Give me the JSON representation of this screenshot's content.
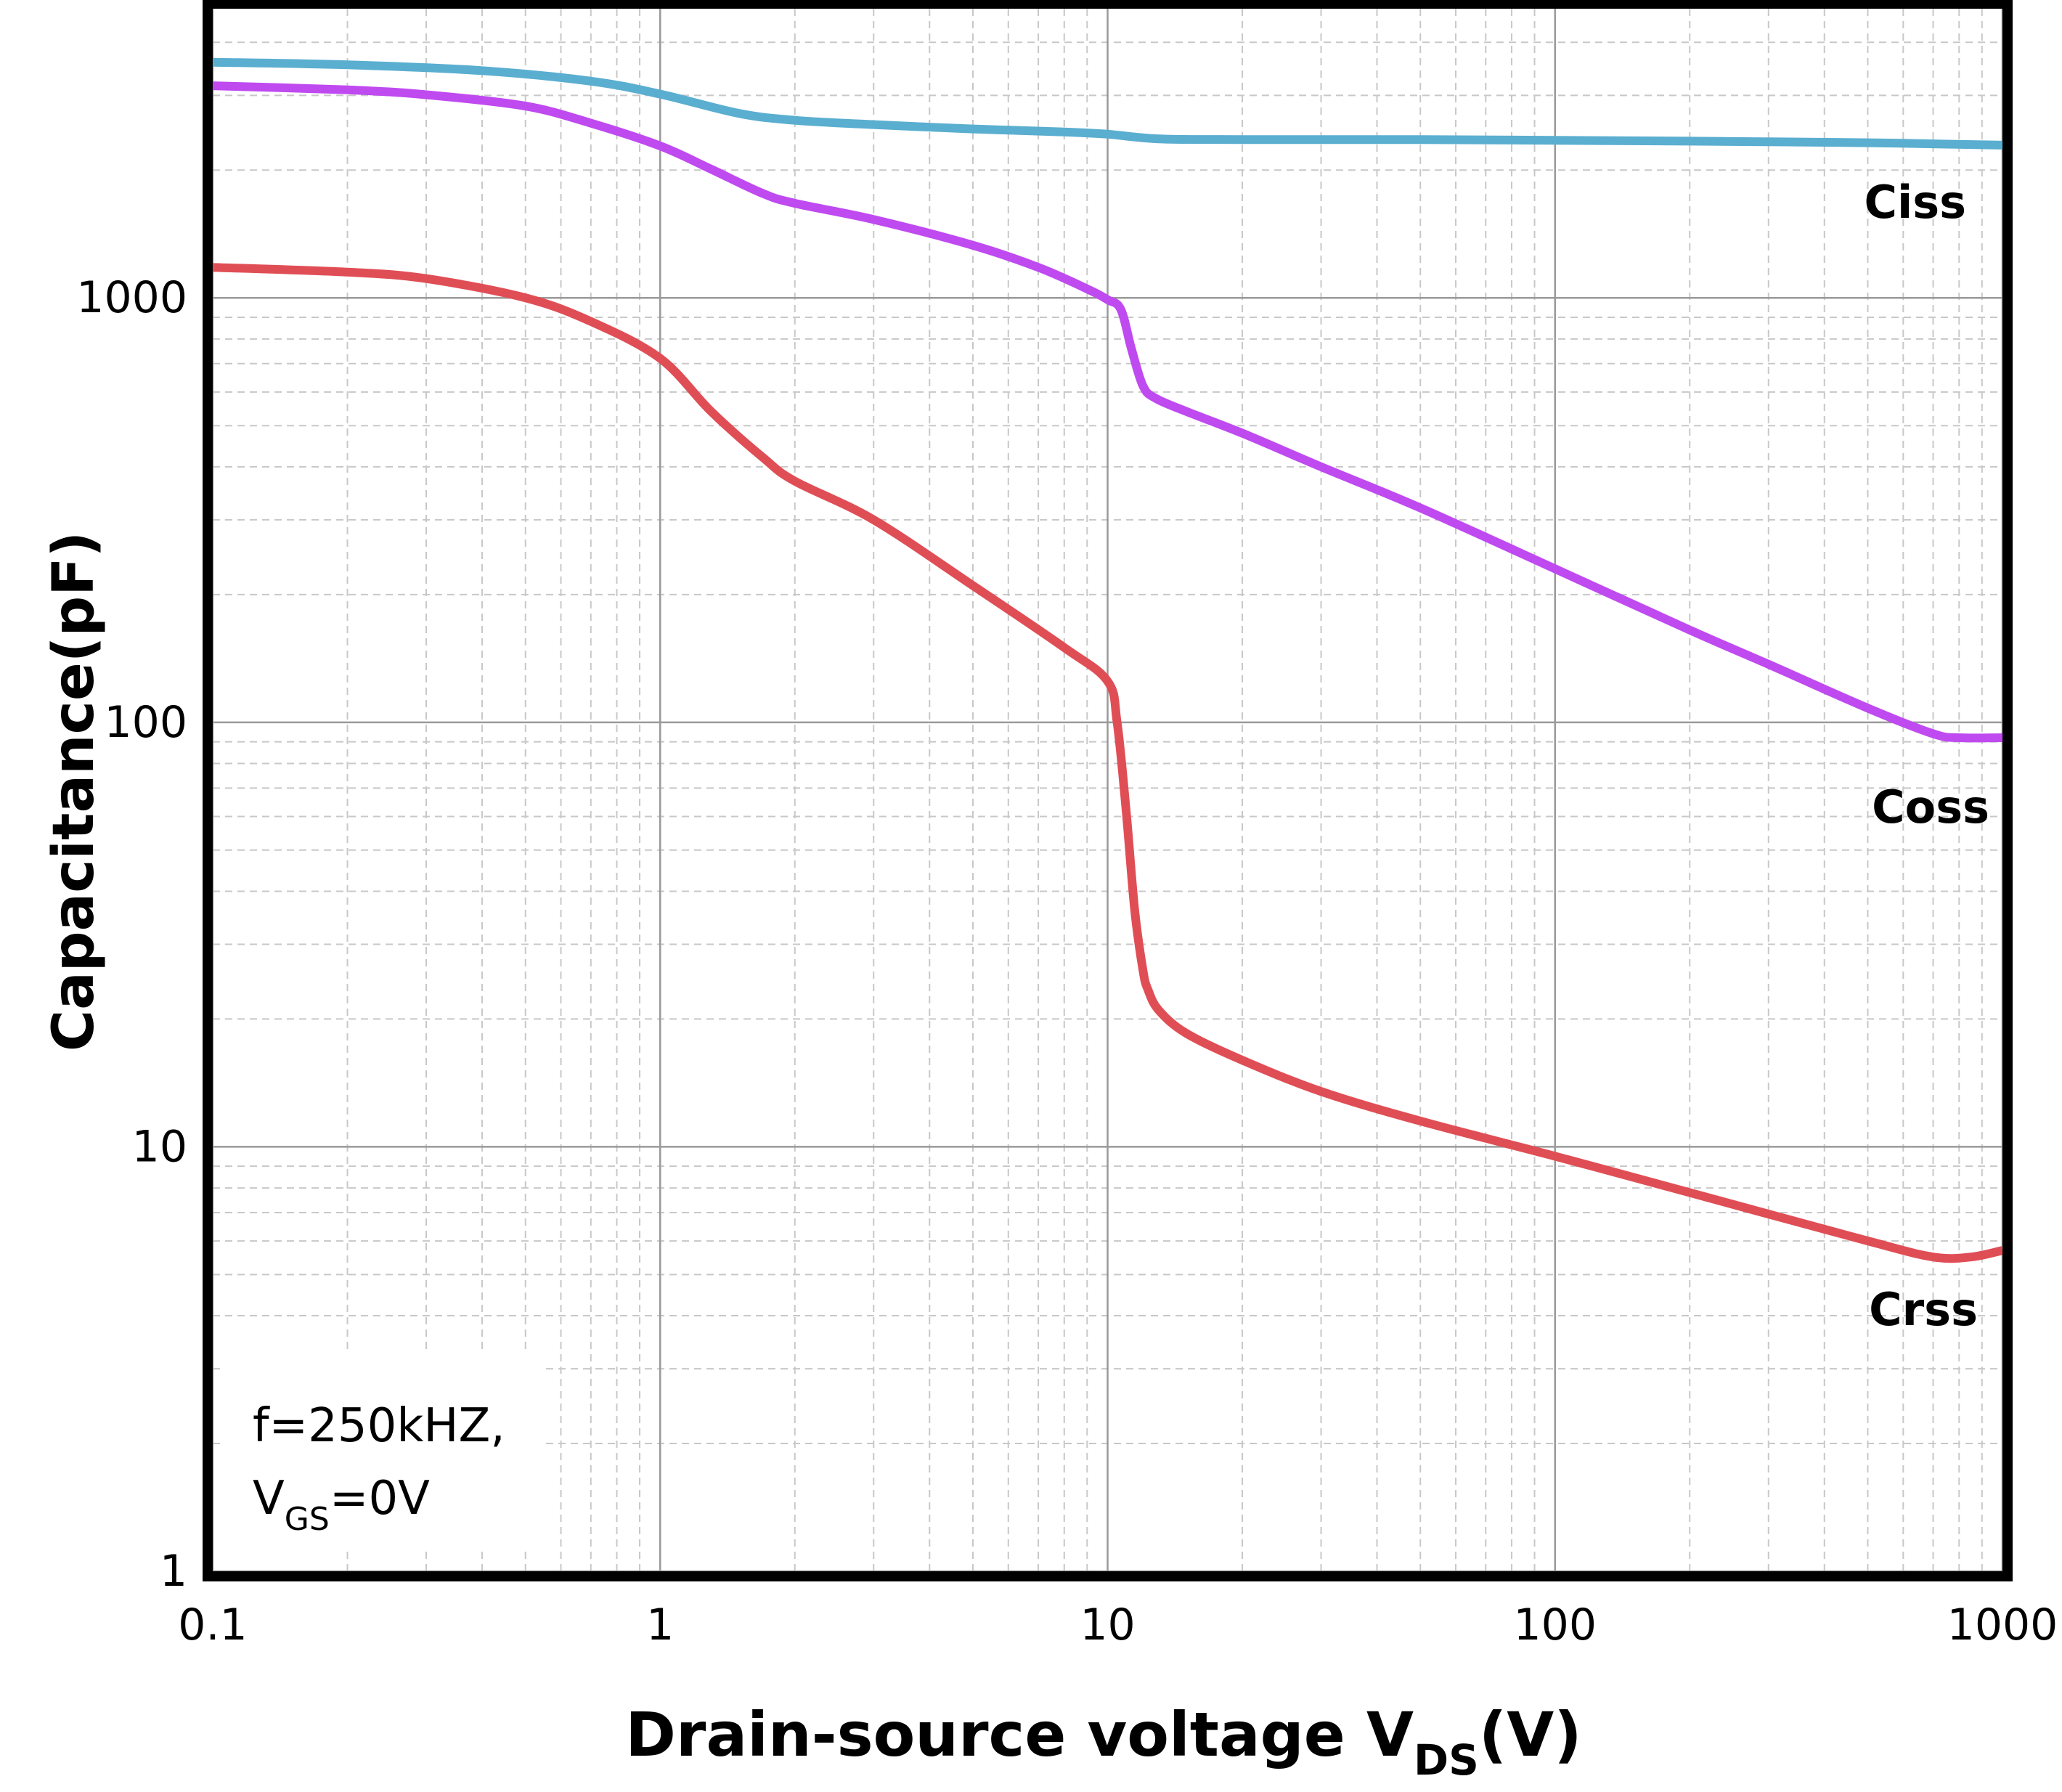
{
  "chart_data": {
    "type": "line",
    "xscale": "log",
    "yscale": "log",
    "xlim": [
      0.1,
      1000
    ],
    "ylim": [
      1,
      4800
    ],
    "xlabel": {
      "main": "Drain-source voltage V",
      "sub": "DS",
      "suffix": "(V)"
    },
    "ylabel": "Capacitance(pF)",
    "x_ticks": [
      "0.1",
      "1",
      "10",
      "100",
      "1000"
    ],
    "x_tick_values": [
      0.1,
      1,
      10,
      100,
      1000
    ],
    "y_ticks": [
      "1",
      "10",
      "100",
      "1000"
    ],
    "y_tick_values": [
      1,
      10,
      100,
      1000
    ],
    "grid": true,
    "annotation": {
      "line1": "f=250kHZ,",
      "line2_prefix": "V",
      "line2_sub": "GS",
      "line2_suffix": "=0V"
    },
    "series": [
      {
        "name": "Ciss",
        "color": "#5aaed0",
        "x": [
          0.1,
          0.2,
          0.4,
          0.7,
          1.0,
          1.5,
          2.0,
          3.0,
          5.0,
          8.0,
          10.0,
          13.0,
          20.0,
          50.0,
          100.0,
          200.0,
          500.0,
          1000.0
        ],
        "y": [
          3590,
          3540,
          3430,
          3240,
          3020,
          2720,
          2620,
          2560,
          2500,
          2460,
          2430,
          2370,
          2360,
          2360,
          2350,
          2340,
          2320,
          2290
        ]
      },
      {
        "name": "Coss",
        "color": "#bf4af0",
        "x": [
          0.1,
          0.2,
          0.3,
          0.5,
          0.7,
          1.0,
          1.3,
          1.7,
          2.0,
          3.0,
          5.0,
          7.0,
          9.0,
          10.0,
          10.7,
          11.3,
          12.0,
          12.8,
          15.0,
          20.0,
          30.0,
          50.0,
          100.0,
          200.0,
          300.0,
          500.0,
          700.0,
          800.0,
          1000.0
        ],
        "y": [
          3160,
          3090,
          3010,
          2830,
          2580,
          2280,
          2010,
          1760,
          1670,
          1530,
          1330,
          1180,
          1050,
          990,
          940,
          760,
          620,
          580,
          540,
          480,
          400,
          320,
          230,
          165,
          137,
          108,
          94,
          92,
          92
        ]
      },
      {
        "name": "Crss",
        "color": "#e04e55",
        "x": [
          0.1,
          0.2,
          0.3,
          0.5,
          0.7,
          1.0,
          1.3,
          1.7,
          2.0,
          3.0,
          5.0,
          8.0,
          10.0,
          10.5,
          11.0,
          11.5,
          12.0,
          12.3,
          13.0,
          15.0,
          20.0,
          30.0,
          50.0,
          100.0,
          200.0,
          500.0,
          700.0,
          850.0,
          1000.0
        ],
        "y": [
          1180,
          1150,
          1110,
          1000,
          880,
          720,
          540,
          420,
          370,
          300,
          210,
          150,
          125,
          100,
          62,
          36,
          26,
          23.5,
          21,
          18.5,
          16,
          13.5,
          11.5,
          9.5,
          7.8,
          6.0,
          5.5,
          5.5,
          5.7
        ]
      }
    ]
  }
}
